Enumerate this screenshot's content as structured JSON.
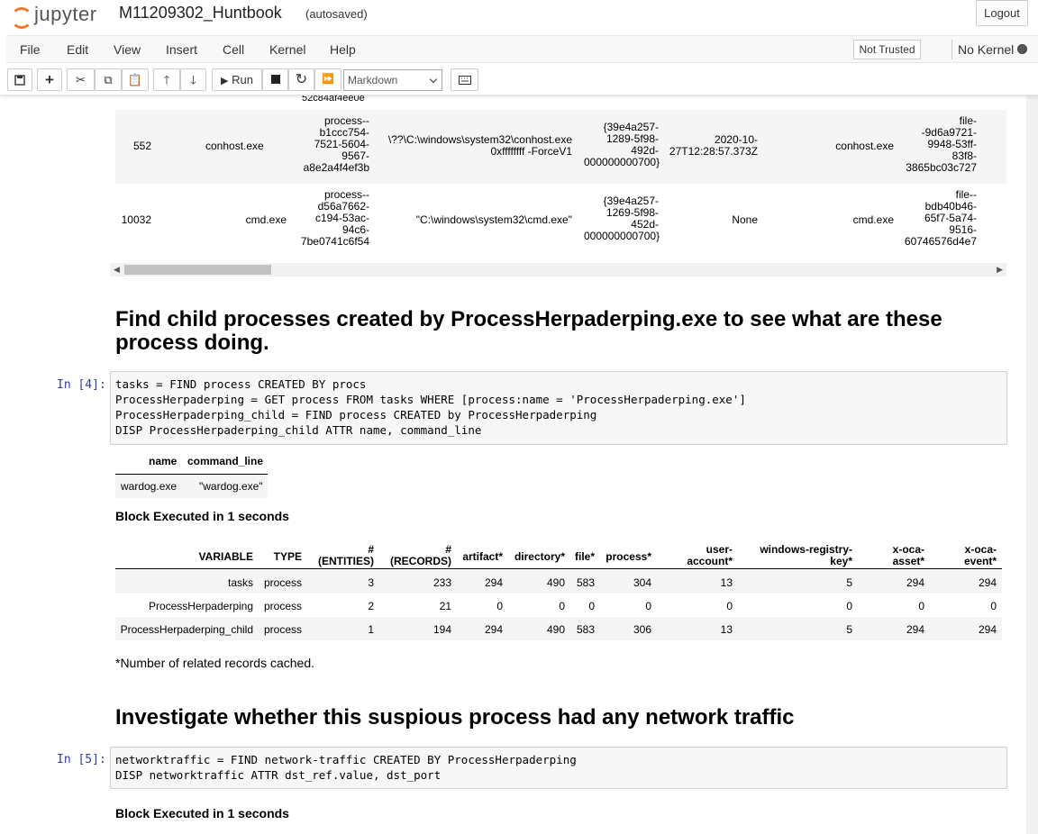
{
  "header": {
    "logo_text": "jupyter",
    "notebook_name": "M11209302_Huntbook",
    "autosave_status": "(autosaved)",
    "logout_label": "Logout"
  },
  "menubar": {
    "items": [
      "File",
      "Edit",
      "View",
      "Insert",
      "Cell",
      "Kernel",
      "Help"
    ],
    "trust_label": "Not Trusted",
    "kernel_label": "No Kernel"
  },
  "toolbar": {
    "run_label": "Run",
    "cell_type": "Markdown"
  },
  "prev_output": {
    "fragment": "52c84af4ee0e",
    "rows": [
      {
        "pid": "552",
        "name": "conhost.exe",
        "ref": [
          "process--",
          "b1ccc754-",
          "7521-5604-",
          "9567-",
          "a8e2a4f4ef3b"
        ],
        "command_line": [
          "\\??\\C:\\windows\\system32\\conhost.exe",
          "0xffffffff -ForceV1"
        ],
        "guid": [
          "{39e4a257-",
          "1289-5f98-",
          "492d-",
          "000000000700}"
        ],
        "created": [
          "2020-10-",
          "27T12:28:57.373Z"
        ],
        "binary": "conhost.exe",
        "file_ref": [
          "file-",
          "-9d6a9721-",
          "9948-53ff-",
          "83f8-",
          "3865bc03c727"
        ]
      },
      {
        "pid": "10032",
        "name": "cmd.exe",
        "ref": [
          "process--",
          "d56a7662-",
          "c194-53ac-",
          "94c6-",
          "7be0741c6f54"
        ],
        "command_line": [
          "\"C:\\windows\\system32\\cmd.exe\""
        ],
        "guid": [
          "{39e4a257-",
          "1269-5f98-",
          "452d-",
          "000000000700}"
        ],
        "created": [
          "None"
        ],
        "binary": "cmd.exe",
        "file_ref": [
          "file--",
          "bdb40b46-",
          "65f7-5a74-",
          "9516-",
          "60746576d4e7"
        ]
      }
    ]
  },
  "section1": {
    "heading": "Find child processes created by ProcessHerpaderping.exe to see what are these process doing.",
    "prompt": "In [4]:",
    "code": "tasks = FIND process CREATED BY procs\nProcessHerpaderping = GET process FROM tasks WHERE [process:name = 'ProcessHerpaderping.exe']\nProcessHerpaderping_child = FIND process CREATED by ProcessHerpaderping\nDISP ProcessHerpaderping_child ATTR name, command_line",
    "result_headers": [
      "name",
      "command_line"
    ],
    "result_row": [
      "wardog.exe",
      "\"wardog.exe\""
    ],
    "exec_time": "Block Executed in 1 seconds",
    "stats_headers": [
      "VARIABLE",
      "TYPE",
      "#\n(ENTITIES)",
      "#\n(RECORDS)",
      "artifact*",
      "directory*",
      "file*",
      "process*",
      "user-\naccount*",
      "windows-registry-\nkey*",
      "x-oca-\nasset*",
      "x-oca-\nevent*"
    ],
    "stats_rows": [
      [
        "tasks",
        "process",
        "3",
        "233",
        "294",
        "490",
        "583",
        "304",
        "13",
        "5",
        "294",
        "294"
      ],
      [
        "ProcessHerpaderping",
        "process",
        "2",
        "21",
        "0",
        "0",
        "0",
        "0",
        "0",
        "0",
        "0",
        "0"
      ],
      [
        "ProcessHerpaderping_child",
        "process",
        "1",
        "194",
        "294",
        "490",
        "583",
        "306",
        "13",
        "5",
        "294",
        "294"
      ]
    ],
    "footnote": "*Number of related records cached."
  },
  "section2": {
    "heading": "Investigate whether this suspious process had any network traffic",
    "prompt": "In [5]:",
    "code": "networktraffic = FIND network-traffic CREATED BY ProcessHerpaderping\nDISP networktraffic ATTR dst_ref.value, dst_port",
    "exec_time": "Block Executed in 1 seconds"
  }
}
